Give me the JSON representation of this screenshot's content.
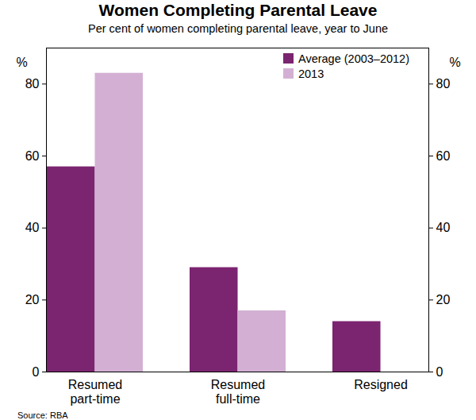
{
  "chart_data": {
    "type": "bar",
    "title": "Women Completing Parental Leave",
    "subtitle": "Per cent of women completing parental leave, year to June",
    "ylabel": "%",
    "source": "Source: RBA",
    "categories": [
      "Resumed part-time",
      "Resumed full-time",
      "Resigned"
    ],
    "series": [
      {
        "name": "Average (2003–2012)",
        "color": "#7b2470",
        "values": [
          57,
          29,
          14
        ]
      },
      {
        "name": "2013",
        "color": "#d3b0d3",
        "values": [
          83,
          17,
          0
        ]
      }
    ],
    "ylim": [
      0,
      90
    ],
    "yticks": [
      0,
      20,
      40,
      60,
      80
    ],
    "grid": false,
    "legend": "top-right"
  }
}
